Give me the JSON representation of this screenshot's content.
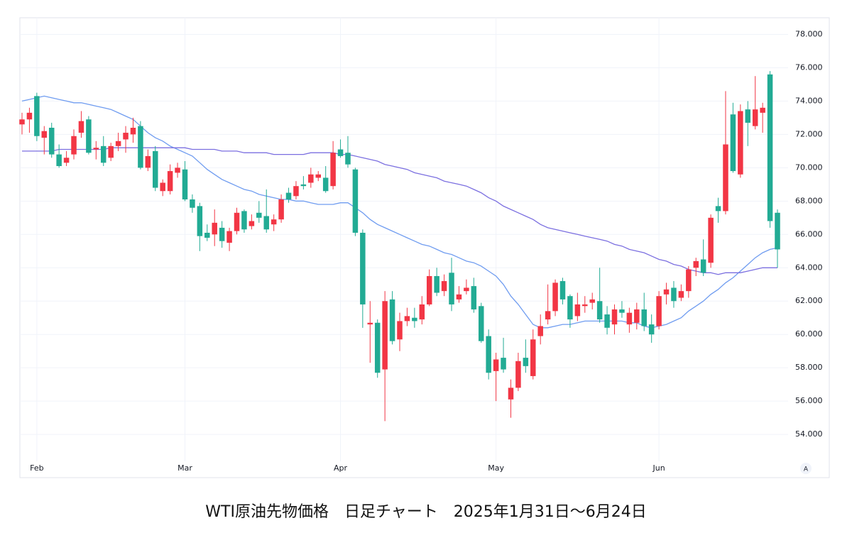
{
  "chart_data": {
    "type": "candlestick",
    "title": "WTI原油先物価格　日足チャート　2025年1月31日～6月24日",
    "categories": [
      null,
      null,
      "Feb",
      null,
      null,
      null,
      null,
      null,
      null,
      null,
      null,
      null,
      null,
      null,
      null,
      null,
      null,
      null,
      null,
      null,
      null,
      null,
      "Mar",
      null,
      null,
      null,
      null,
      null,
      null,
      null,
      null,
      null,
      null,
      null,
      null,
      null,
      null,
      null,
      null,
      null,
      null,
      null,
      null,
      "Apr",
      null,
      null,
      null,
      null,
      null,
      null,
      null,
      null,
      null,
      null,
      null,
      null,
      null,
      null,
      null,
      null,
      null,
      null,
      null,
      null,
      "May",
      null,
      null,
      null,
      null,
      null,
      null,
      null,
      null,
      null,
      null,
      null,
      null,
      null,
      null,
      null,
      null,
      null,
      null,
      null,
      null,
      null,
      "Jun",
      null,
      null,
      null,
      null,
      null,
      null,
      null,
      null,
      null,
      null,
      null,
      null,
      null,
      null,
      null,
      null
    ],
    "open": [
      72.6,
      72.9,
      74.3,
      71.8,
      72.4,
      70.8,
      70.3,
      70.8,
      72.1,
      72.9,
      71.1,
      71.3,
      70.6,
      71.3,
      71.7,
      72.0,
      72.5,
      70.0,
      71.0,
      68.6,
      68.6,
      69.7,
      69.9,
      68.1,
      67.7,
      66.1,
      66.0,
      66.4,
      65.5,
      66.2,
      67.4,
      66.5,
      67.3,
      67.1,
      66.6,
      66.9,
      68.5,
      68.3,
      69.0,
      69.1,
      69.4,
      69.4,
      68.9,
      71.1,
      70.9,
      69.9,
      66.1,
      60.6,
      60.7,
      57.9,
      62.1,
      59.7,
      60.8,
      61.0,
      60.9,
      61.8,
      63.5,
      62.6,
      63.7,
      62.1,
      62.6,
      62.9,
      61.7,
      59.9,
      57.8,
      58.6,
      56.1,
      56.8,
      58.6,
      57.5,
      59.9,
      60.9,
      61.4,
      63.2,
      62.3,
      61.1,
      61.7,
      61.9,
      62.0,
      61.2,
      60.6,
      61.5,
      60.6,
      60.7,
      61.5,
      60.6,
      60.5,
      62.4,
      62.8,
      62.2,
      62.6,
      64.0,
      64.5,
      64.3,
      67.7,
      67.4,
      73.2,
      69.6,
      73.5,
      72.5,
      73.3,
      75.6,
      67.3
    ],
    "high": [
      73.3,
      73.6,
      74.5,
      72.5,
      72.7,
      71.4,
      71.0,
      72.3,
      73.4,
      73.1,
      71.6,
      71.9,
      71.5,
      72.1,
      72.5,
      73.0,
      72.8,
      71.1,
      71.3,
      69.3,
      70.2,
      70.3,
      70.4,
      68.4,
      67.9,
      66.6,
      67.5,
      66.8,
      66.4,
      67.6,
      67.5,
      67.2,
      68.0,
      68.7,
      67.2,
      68.4,
      68.8,
      69.2,
      69.5,
      70.0,
      69.8,
      70.1,
      71.6,
      71.7,
      71.9,
      70.0,
      66.3,
      62.0,
      60.9,
      62.6,
      62.6,
      61.3,
      61.6,
      61.6,
      62.3,
      63.9,
      64.0,
      63.6,
      64.6,
      62.9,
      63.3,
      63.4,
      61.9,
      60.3,
      58.9,
      59.8,
      57.3,
      58.9,
      59.7,
      60.3,
      61.2,
      63.0,
      63.3,
      63.4,
      62.4,
      62.5,
      62.3,
      62.5,
      64.0,
      61.7,
      61.8,
      62.0,
      61.6,
      61.9,
      62.5,
      61.2,
      62.6,
      63.1,
      63.2,
      63.0,
      64.1,
      64.6,
      65.7,
      67.2,
      68.2,
      74.6,
      73.9,
      73.8,
      74.0,
      75.5,
      73.9,
      75.8,
      67.5
    ],
    "low": [
      72.0,
      72.1,
      71.6,
      70.8,
      70.6,
      70.0,
      70.1,
      70.5,
      71.8,
      70.8,
      70.5,
      70.1,
      70.4,
      71.0,
      70.9,
      71.5,
      69.9,
      69.8,
      68.6,
      68.3,
      68.4,
      69.4,
      68.0,
      67.3,
      65.0,
      65.6,
      65.3,
      65.2,
      65.0,
      66.0,
      66.1,
      66.3,
      66.7,
      66.1,
      66.2,
      66.7,
      67.9,
      68.1,
      68.7,
      68.8,
      69.2,
      68.5,
      68.7,
      70.6,
      70.0,
      65.9,
      60.4,
      58.3,
      57.4,
      54.8,
      59.4,
      59.0,
      60.5,
      60.4,
      60.6,
      61.7,
      62.3,
      62.3,
      61.4,
      61.9,
      62.4,
      61.3,
      59.5,
      57.3,
      56.0,
      57.7,
      55.0,
      56.6,
      57.7,
      57.3,
      59.4,
      60.6,
      61.1,
      61.8,
      60.4,
      60.8,
      61.3,
      61.5,
      60.7,
      60.0,
      60.0,
      61.0,
      60.1,
      60.3,
      60.2,
      59.5,
      60.3,
      61.8,
      61.6,
      62.0,
      62.2,
      63.5,
      63.5,
      64.0,
      66.7,
      67.2,
      69.7,
      69.4,
      71.3,
      72.3,
      72.1,
      66.4,
      64.0
    ],
    "close": [
      72.9,
      73.3,
      71.9,
      72.2,
      70.8,
      70.1,
      70.6,
      71.9,
      72.8,
      70.9,
      71.2,
      70.3,
      71.3,
      71.6,
      72.1,
      72.4,
      70.0,
      70.7,
      68.8,
      69.1,
      69.8,
      70.0,
      68.1,
      67.6,
      65.9,
      65.8,
      66.7,
      65.6,
      66.2,
      67.3,
      66.3,
      66.8,
      67.0,
      66.3,
      66.9,
      68.1,
      68.1,
      68.9,
      68.9,
      69.6,
      69.6,
      68.6,
      70.9,
      70.7,
      70.2,
      66.1,
      61.8,
      60.7,
      57.7,
      62.0,
      59.6,
      60.8,
      61.1,
      60.8,
      61.8,
      63.5,
      62.5,
      63.2,
      61.8,
      62.4,
      62.8,
      61.5,
      59.6,
      57.7,
      58.5,
      57.9,
      56.8,
      58.4,
      58.1,
      59.7,
      60.5,
      61.4,
      63.1,
      62.1,
      60.9,
      61.8,
      61.8,
      62.1,
      60.9,
      60.4,
      61.5,
      61.3,
      61.3,
      61.5,
      60.5,
      60.0,
      62.3,
      62.7,
      62.0,
      62.6,
      63.9,
      64.4,
      63.7,
      67.0,
      67.4,
      71.4,
      69.8,
      73.4,
      72.7,
      73.5,
      73.6,
      66.8,
      65.1
    ],
    "up_color": "#f23645",
    "down_color": "#22ab94",
    "lines": [
      {
        "color": "#6f9cf0",
        "values": [
          74.0,
          74.1,
          74.2,
          74.3,
          74.2,
          74.1,
          74.0,
          73.9,
          73.9,
          73.8,
          73.7,
          73.6,
          73.5,
          73.3,
          73.1,
          72.9,
          72.5,
          72.1,
          71.8,
          71.6,
          71.3,
          71.1,
          70.9,
          70.7,
          70.3,
          69.9,
          69.6,
          69.3,
          69.1,
          68.9,
          68.7,
          68.6,
          68.4,
          68.3,
          68.2,
          68.1,
          68.1,
          68.0,
          68.0,
          67.9,
          67.8,
          67.8,
          67.8,
          67.9,
          67.9,
          67.6,
          67.3,
          66.9,
          66.6,
          66.4,
          66.2,
          66.0,
          65.8,
          65.6,
          65.4,
          65.3,
          65.1,
          64.9,
          64.8,
          64.6,
          64.4,
          64.3,
          64.1,
          63.8,
          63.5,
          63.0,
          62.3,
          61.8,
          61.2,
          60.6,
          60.4,
          60.4,
          60.5,
          60.6,
          60.6,
          60.7,
          60.8,
          60.8,
          60.8,
          60.8,
          60.8,
          60.8,
          60.7,
          60.7,
          60.5,
          60.4,
          60.5,
          60.6,
          60.8,
          61.0,
          61.4,
          61.7,
          62.0,
          62.4,
          62.7,
          63.1,
          63.4,
          63.8,
          64.2,
          64.6,
          64.9,
          65.1,
          65.2
        ]
      },
      {
        "color": "#7b6fe0",
        "values": [
          71.0,
          71.0,
          71.0,
          71.0,
          71.0,
          71.1,
          71.1,
          71.1,
          71.1,
          71.1,
          71.1,
          71.1,
          71.2,
          71.2,
          71.2,
          71.2,
          71.2,
          71.2,
          71.2,
          71.2,
          71.2,
          71.2,
          71.2,
          71.1,
          71.1,
          71.1,
          71.1,
          71.0,
          71.0,
          71.0,
          70.9,
          70.9,
          70.9,
          70.9,
          70.8,
          70.8,
          70.8,
          70.8,
          70.8,
          70.9,
          70.9,
          70.9,
          70.9,
          70.8,
          70.8,
          70.7,
          70.6,
          70.5,
          70.4,
          70.2,
          70.1,
          70.0,
          69.9,
          69.7,
          69.6,
          69.5,
          69.4,
          69.2,
          69.1,
          69.0,
          68.9,
          68.7,
          68.5,
          68.2,
          68.0,
          67.7,
          67.5,
          67.3,
          67.1,
          66.9,
          66.6,
          66.4,
          66.3,
          66.2,
          66.1,
          66.0,
          65.9,
          65.8,
          65.7,
          65.6,
          65.4,
          65.3,
          65.1,
          65.0,
          64.9,
          64.7,
          64.5,
          64.4,
          64.2,
          64.1,
          63.9,
          63.8,
          63.7,
          63.7,
          63.6,
          63.7,
          63.7,
          63.7,
          63.8,
          63.9,
          64.0,
          64.0,
          64.0
        ]
      }
    ],
    "ylim": [
      52.6,
      79.0
    ],
    "yticks": [
      {
        "value": 54,
        "label": "54.000"
      },
      {
        "value": 56,
        "label": "56.000"
      },
      {
        "value": 58,
        "label": "58.000"
      },
      {
        "value": 60,
        "label": "60.000"
      },
      {
        "value": 62,
        "label": "62.000"
      },
      {
        "value": 64,
        "label": "64.000"
      },
      {
        "value": 66,
        "label": "66.000"
      },
      {
        "value": 68,
        "label": "68.000"
      },
      {
        "value": 70,
        "label": "70.000"
      },
      {
        "value": 72,
        "label": "72.000"
      },
      {
        "value": 74,
        "label": "74.000"
      },
      {
        "value": 76,
        "label": "76.000"
      },
      {
        "value": 78,
        "label": "78.000"
      }
    ],
    "grid": true,
    "autoscale_label": "A"
  }
}
